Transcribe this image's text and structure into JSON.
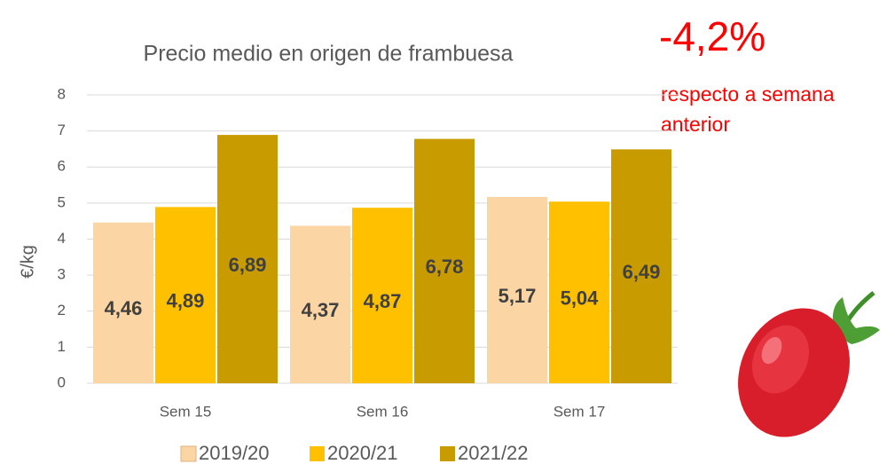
{
  "chart_data": {
    "type": "bar",
    "title": "Precio medio en origen de frambuesa",
    "y_label": "€/kg",
    "categories": [
      "Sem 15",
      "Sem 16",
      "Sem 17"
    ],
    "series": [
      {
        "name": "2019/20",
        "color": "#fcd5a5",
        "values": [
          4.46,
          4.37,
          5.17
        ],
        "value_labels": [
          "4,46",
          "4,37",
          "5,17"
        ]
      },
      {
        "name": "2020/21",
        "color": "#ffc000",
        "values": [
          4.89,
          4.87,
          5.04
        ],
        "value_labels": [
          "4,89",
          "4,87",
          "5,04"
        ]
      },
      {
        "name": "2021/22",
        "color": "#c89b00",
        "values": [
          6.89,
          6.78,
          6.49
        ],
        "value_labels": [
          "6,89",
          "6,78",
          "6,49"
        ]
      }
    ],
    "ylim": [
      0,
      8
    ],
    "yticks": [
      0,
      1,
      2,
      3,
      4,
      5,
      6,
      7,
      8
    ],
    "grid": true,
    "annotations": [
      "-4,2%",
      "respecto a semana",
      "anterior"
    ]
  }
}
